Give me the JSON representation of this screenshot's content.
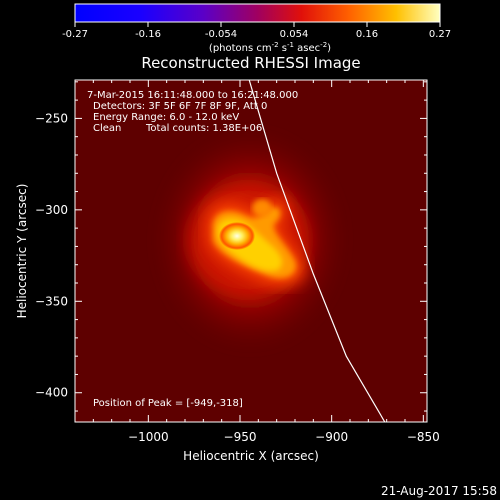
{
  "colorbar": {
    "ticks": [
      "-0.27",
      "-0.16",
      "-0.054",
      "0.054",
      "0.16",
      "0.27"
    ],
    "units_prefix": "(photons cm",
    "units_sup1": "-2",
    "units_mid": " s",
    "units_sup2": "-1",
    "units_mid2": " asec",
    "units_sup3": "-2",
    "units_suffix": ")"
  },
  "chart_data": {
    "type": "heatmap",
    "title": "Reconstructed RHESSI Image",
    "xlabel": "Heliocentric X (arcsec)",
    "ylabel": "Heliocentric Y (arcsec)",
    "xlim": [
      -1040,
      -848
    ],
    "ylim": [
      -416,
      -229
    ],
    "x_ticks": [
      -1000,
      -950,
      -900,
      -850
    ],
    "x_tick_labels": [
      "−1000",
      "−950",
      "−900",
      "−850"
    ],
    "y_ticks": [
      -250,
      -300,
      -350,
      -400
    ],
    "y_tick_labels": [
      "−250",
      "−300",
      "−350",
      "−400"
    ],
    "peak": [
      -949,
      -318
    ],
    "annotations": {
      "time": " 7-Mar-2015 16:11:48.000 to 16:21:48.000",
      "detectors": "Detectors: 3F 5F 6F 7F 8F 9F, Att 0",
      "energy": "Energy Range: 6.0 - 12.0 keV",
      "method": "Clean",
      "counts": "Total counts: 1.38E+06",
      "peak_label": "Position of Peak = [-949,-318]"
    },
    "limb_curve": [
      [
        -945,
        -229
      ],
      [
        -930,
        -280
      ],
      [
        -910,
        -335
      ],
      [
        -892,
        -380
      ],
      [
        -871,
        -416
      ]
    ]
  },
  "footer": {
    "date": "21-Aug-2017 15:58"
  }
}
